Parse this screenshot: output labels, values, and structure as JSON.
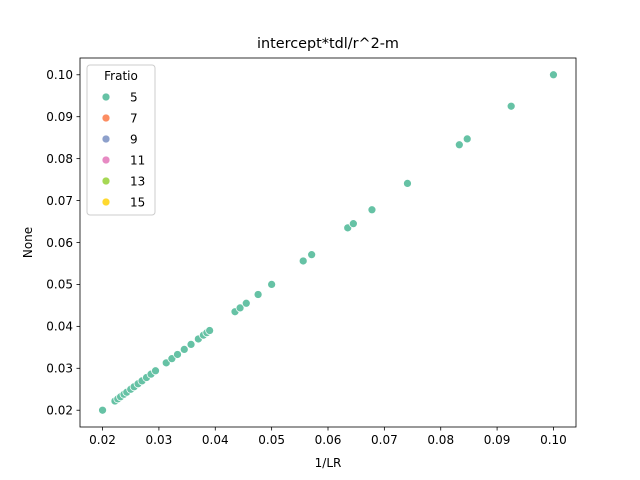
{
  "chart_data": {
    "type": "scatter",
    "title": "intercept*tdl/r^2-m",
    "xlabel": "1/LR",
    "ylabel": "None",
    "xlim": [
      0.016,
      0.104
    ],
    "ylim": [
      0.016,
      0.104
    ],
    "xticks": [
      0.02,
      0.03,
      0.04,
      0.05,
      0.06,
      0.07,
      0.08,
      0.09,
      0.1
    ],
    "xtick_labels": [
      "0.02",
      "0.03",
      "0.04",
      "0.05",
      "0.06",
      "0.07",
      "0.08",
      "0.09",
      "0.10"
    ],
    "yticks": [
      0.02,
      0.03,
      0.04,
      0.05,
      0.06,
      0.07,
      0.08,
      0.09,
      0.1
    ],
    "ytick_labels": [
      "0.02",
      "0.03",
      "0.04",
      "0.05",
      "0.06",
      "0.07",
      "0.08",
      "0.09",
      "0.10"
    ],
    "grid": false,
    "legend": {
      "title": "Fratio",
      "placement": "upper-left",
      "entries": [
        {
          "label": "5",
          "color": "#66c2a5"
        },
        {
          "label": "7",
          "color": "#fc8d62"
        },
        {
          "label": "9",
          "color": "#8da0cb"
        },
        {
          "label": "11",
          "color": "#e78ac3"
        },
        {
          "label": "13",
          "color": "#a6d854"
        },
        {
          "label": "15",
          "color": "#ffd92f"
        }
      ]
    },
    "series": [
      {
        "name": "5",
        "color": "#66c2a5",
        "x": [
          0.02,
          0.0222,
          0.0227,
          0.0232,
          0.0238,
          0.0243,
          0.025,
          0.0256,
          0.0263,
          0.027,
          0.0278,
          0.0286,
          0.0294,
          0.0313,
          0.0323,
          0.0333,
          0.0345,
          0.0357,
          0.037,
          0.0379,
          0.0385,
          0.039,
          0.0435,
          0.0444,
          0.0455,
          0.0476,
          0.05,
          0.0556,
          0.0571,
          0.0635,
          0.0645,
          0.0678,
          0.0741,
          0.0833,
          0.0847,
          0.0925,
          0.1
        ],
        "y": [
          0.02,
          0.0222,
          0.0227,
          0.0232,
          0.0238,
          0.0243,
          0.025,
          0.0256,
          0.0263,
          0.027,
          0.0278,
          0.0286,
          0.0294,
          0.0313,
          0.0323,
          0.0333,
          0.0345,
          0.0357,
          0.037,
          0.0379,
          0.0385,
          0.039,
          0.0435,
          0.0444,
          0.0455,
          0.0476,
          0.05,
          0.0556,
          0.0571,
          0.0635,
          0.0645,
          0.0678,
          0.0741,
          0.0833,
          0.0847,
          0.0925,
          0.1
        ]
      }
    ]
  }
}
